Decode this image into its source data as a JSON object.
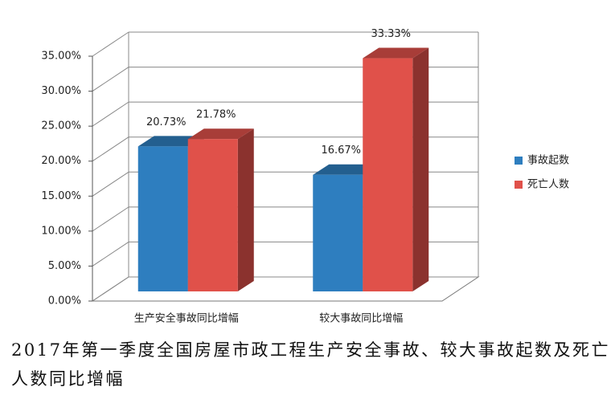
{
  "chart_data": {
    "type": "bar",
    "title": "2017年第一季度全国房屋市政工程生产安全事故、较大事故起数及死亡人数同比增幅",
    "categories": [
      "生产安全事故同比增幅",
      "较大事故同比增幅"
    ],
    "series": [
      {
        "name": "事故起数",
        "color": "#2e7ebf",
        "values": [
          20.73,
          16.67
        ],
        "value_labels": [
          "20.73%",
          "16.67%"
        ]
      },
      {
        "name": "死亡人数",
        "color": "#e0514a",
        "values": [
          21.78,
          33.33
        ],
        "value_labels": [
          "21.78%",
          "33.33%"
        ]
      }
    ],
    "ylim": [
      0,
      35
    ],
    "yticks": [
      {
        "value": 0,
        "label": "0.00%"
      },
      {
        "value": 5,
        "label": "5.00%"
      },
      {
        "value": 10,
        "label": "10.00%"
      },
      {
        "value": 15,
        "label": "15.00%"
      },
      {
        "value": 20,
        "label": "20.00%"
      },
      {
        "value": 25,
        "label": "25.00%"
      },
      {
        "value": 30,
        "label": "30.00%"
      },
      {
        "value": 35,
        "label": "35.00%"
      }
    ],
    "grid": true,
    "legend": "right"
  }
}
